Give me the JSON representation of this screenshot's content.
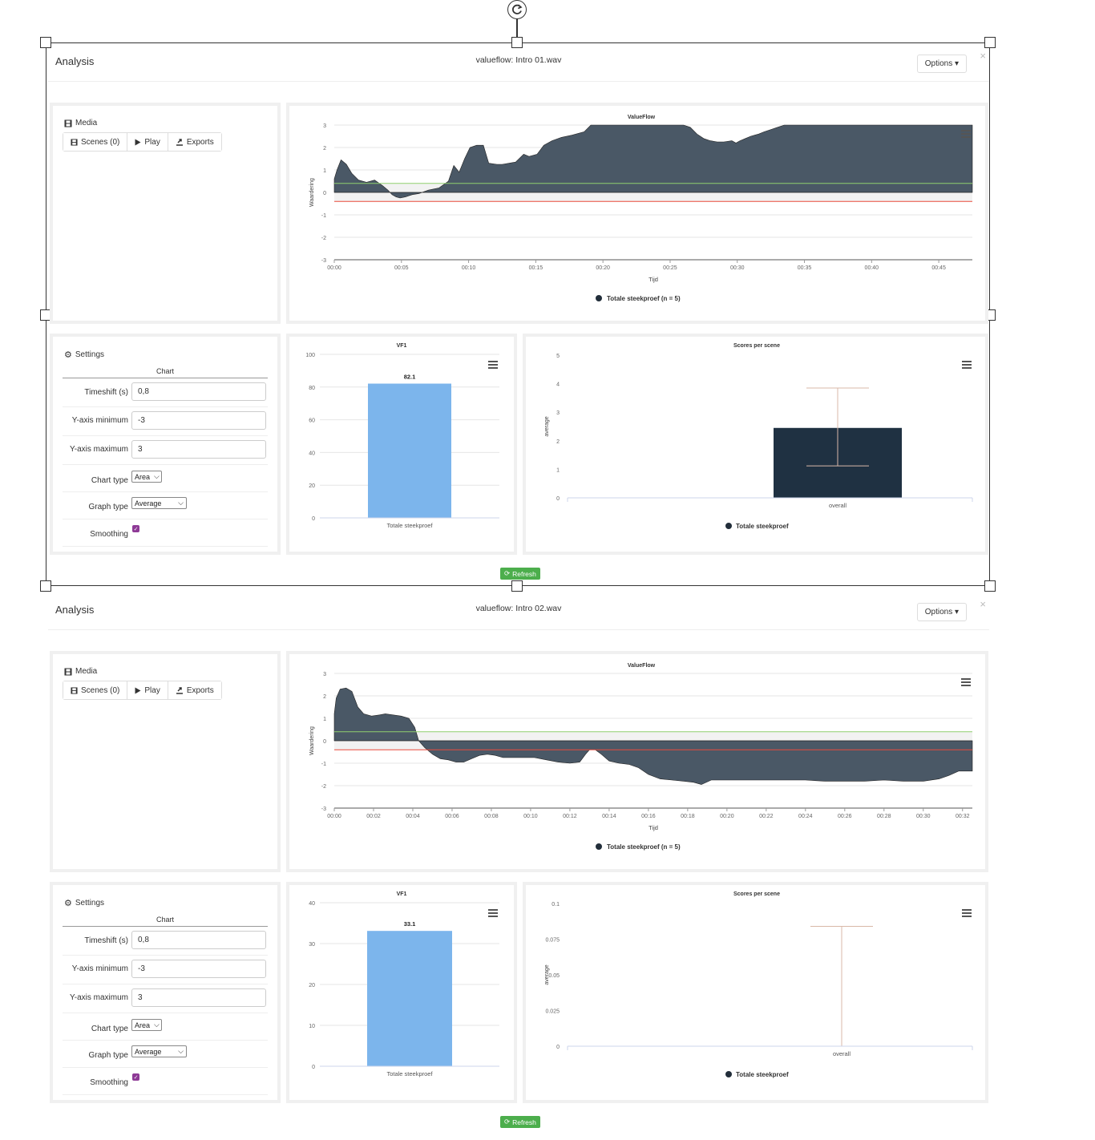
{
  "analyses": [
    {
      "title": "Analysis",
      "file": "valueflow: Intro 01.wav",
      "options_label": "Options ▾",
      "close": "×",
      "media": {
        "label": "Media",
        "scenes": "Scenes (0)",
        "play": "Play",
        "exports": "Exports"
      },
      "settings": {
        "label": "Settings",
        "section": "Chart",
        "timeshift_label": "Timeshift (s)",
        "timeshift": "0,8",
        "ymin_label": "Y-axis minimum",
        "ymin": "-3",
        "ymax_label": "Y-axis maximum",
        "ymax": "3",
        "charttype_label": "Chart type",
        "charttype": "Area",
        "graphtype_label": "Graph type",
        "graphtype": "Average",
        "smoothing_label": "Smoothing",
        "smoothing": true
      },
      "refresh": "Refresh",
      "colors": {
        "area": "#4a5866",
        "bar": "#7cb5ec",
        "scene_bar": "#1f3142",
        "err": "#d9b8a8",
        "green": "#8fcf6f",
        "red": "#e84a3c"
      }
    },
    {
      "title": "Analysis",
      "file": "valueflow: Intro 02.wav",
      "options_label": "Options ▾",
      "close": "×",
      "media": {
        "label": "Media",
        "scenes": "Scenes (0)",
        "play": "Play",
        "exports": "Exports"
      },
      "settings": {
        "label": "Settings",
        "section": "Chart",
        "timeshift_label": "Timeshift (s)",
        "timeshift": "0,8",
        "ymin_label": "Y-axis minimum",
        "ymin": "-3",
        "ymax_label": "Y-axis maximum",
        "ymax": "3",
        "charttype_label": "Chart type",
        "charttype": "Area",
        "graphtype_label": "Graph type",
        "graphtype": "Average",
        "smoothing_label": "Smoothing",
        "smoothing": true
      },
      "refresh": "Refresh"
    }
  ],
  "chart_data": [
    {
      "id": "vf1-area",
      "type": "area",
      "title": "ValueFlow",
      "xlabel": "Tijd",
      "ylabel": "Waardering",
      "ylim": [
        -3,
        3
      ],
      "yticks": [
        3,
        2,
        1,
        0,
        -1,
        -2,
        -3
      ],
      "xlim": [
        0,
        47.5
      ],
      "xticks": [
        "00:00",
        "00:05",
        "00:10",
        "00:15",
        "00:20",
        "00:25",
        "00:30",
        "00:35",
        "00:40",
        "00:45"
      ],
      "xtick_values": [
        0,
        5,
        10,
        15,
        20,
        25,
        30,
        35,
        40,
        45
      ],
      "legend": "Totale steekproef (n = 5)",
      "ref_lines": [
        0.4,
        -0.4
      ],
      "x": [
        0,
        0.2,
        0.5,
        0.9,
        1.3,
        1.8,
        2.4,
        3.0,
        3.6,
        4.0,
        4.3,
        4.6,
        4.9,
        5.3,
        5.8,
        6.3,
        7.0,
        7.8,
        8.5,
        8.9,
        9.3,
        9.7,
        10.1,
        10.6,
        11.1,
        11.5,
        12.1,
        12.5,
        13.5,
        14.1,
        14.5,
        15.1,
        15.6,
        16.2,
        16.9,
        17.7,
        18.6,
        19.1,
        19.6,
        20.4,
        21.4,
        22.3,
        23.3,
        24.5,
        26.0,
        26.5,
        27.0,
        27.5,
        28.0,
        28.5,
        29.0,
        29.6,
        29.9,
        30.2,
        30.6,
        31.0,
        31.3,
        31.6,
        32.0,
        32.5,
        33.0,
        33.5,
        34.0,
        47.5
      ],
      "y": [
        0.6,
        1.0,
        1.45,
        1.25,
        0.85,
        0.55,
        0.45,
        0.55,
        0.3,
        0.1,
        -0.1,
        -0.2,
        -0.25,
        -0.2,
        -0.1,
        -0.05,
        0.1,
        0.2,
        0.5,
        1.2,
        0.9,
        1.5,
        2.0,
        2.1,
        2.1,
        1.3,
        1.25,
        1.25,
        1.35,
        1.7,
        1.6,
        1.7,
        2.1,
        2.3,
        2.45,
        2.55,
        2.7,
        3.0,
        3.1,
        3.1,
        3.05,
        3.05,
        3.05,
        3.1,
        3.1,
        2.9,
        2.6,
        2.4,
        2.3,
        2.25,
        2.25,
        2.3,
        2.2,
        2.3,
        2.4,
        2.5,
        2.55,
        2.6,
        2.7,
        2.8,
        2.9,
        3.0,
        3.2,
        3.2
      ]
    },
    {
      "id": "vf1-bar",
      "type": "bar",
      "title": "VF1",
      "categories": [
        "Totale steekproef"
      ],
      "values": [
        82.1
      ],
      "data_labels": [
        "82.1"
      ],
      "ylim": [
        0,
        100
      ],
      "yticks": [
        0,
        20,
        40,
        60,
        80,
        100
      ]
    },
    {
      "id": "scores1",
      "type": "bar",
      "title": "Scores per scene",
      "ylabel": "average",
      "categories": [
        "overall"
      ],
      "values": [
        2.45
      ],
      "error": [
        1.12,
        3.85
      ],
      "ylim": [
        0,
        5
      ],
      "yticks": [
        0,
        1,
        2,
        3,
        4,
        5
      ],
      "legend": "Totale steekproef"
    },
    {
      "id": "vf2-area",
      "type": "area",
      "title": "ValueFlow",
      "xlabel": "Tijd",
      "ylabel": "Waardering",
      "ylim": [
        -3,
        3
      ],
      "yticks": [
        3,
        2,
        1,
        0,
        -1,
        -2,
        -3
      ],
      "xlim": [
        0,
        32.5
      ],
      "xticks": [
        "00:00",
        "00:02",
        "00:04",
        "00:06",
        "00:08",
        "00:10",
        "00:12",
        "00:14",
        "00:16",
        "00:18",
        "00:20",
        "00:22",
        "00:24",
        "00:26",
        "00:28",
        "00:30",
        "00:32"
      ],
      "xtick_values": [
        0,
        2,
        4,
        6,
        8,
        10,
        12,
        14,
        16,
        18,
        20,
        22,
        24,
        26,
        28,
        30,
        32
      ],
      "legend": "Totale steekproef (n = 5)",
      "ref_lines": [
        0.4,
        -0.4
      ],
      "x": [
        0,
        0.1,
        0.3,
        0.6,
        0.9,
        1.2,
        1.5,
        1.9,
        2.3,
        2.6,
        3.0,
        3.4,
        3.8,
        4.1,
        4.3,
        4.6,
        5.0,
        5.4,
        5.8,
        6.2,
        6.6,
        7.0,
        7.4,
        7.8,
        8.2,
        8.6,
        9.0,
        9.6,
        10.2,
        10.8,
        11.4,
        12.0,
        12.5,
        12.8,
        13.0,
        13.3,
        13.6,
        14.0,
        14.5,
        15.0,
        15.5,
        16.0,
        16.6,
        17.2,
        17.8,
        18.3,
        18.7,
        19.2,
        20.0,
        21.0,
        22.0,
        23.0,
        24.0,
        25.0,
        26.0,
        27.0,
        28.0,
        29.0,
        30.0,
        30.8,
        31.3,
        31.8,
        32.5
      ],
      "y": [
        1.2,
        1.9,
        2.3,
        2.35,
        2.2,
        1.5,
        1.2,
        1.1,
        1.15,
        1.2,
        1.15,
        1.1,
        1.0,
        0.6,
        0.0,
        -0.3,
        -0.6,
        -0.8,
        -0.85,
        -0.95,
        -0.95,
        -0.8,
        -0.65,
        -0.6,
        -0.65,
        -0.75,
        -0.75,
        -0.75,
        -0.75,
        -0.85,
        -0.95,
        -1.0,
        -0.95,
        -0.6,
        -0.4,
        -0.4,
        -0.6,
        -0.9,
        -1.0,
        -1.05,
        -1.2,
        -1.5,
        -1.7,
        -1.75,
        -1.8,
        -1.85,
        -1.95,
        -1.75,
        -1.75,
        -1.75,
        -1.75,
        -1.75,
        -1.75,
        -1.8,
        -1.8,
        -1.8,
        -1.75,
        -1.8,
        -1.8,
        -1.7,
        -1.55,
        -1.35,
        -1.35
      ]
    },
    {
      "id": "vf2-bar",
      "type": "bar",
      "title": "VF1",
      "categories": [
        "Totale steekproef"
      ],
      "values": [
        33.1
      ],
      "data_labels": [
        "33.1"
      ],
      "ylim": [
        0,
        40
      ],
      "yticks": [
        0,
        10,
        20,
        30,
        40
      ]
    },
    {
      "id": "scores2",
      "type": "bar",
      "title": "Scores per scene",
      "ylabel": "average",
      "categories": [
        "overall"
      ],
      "values": [
        0
      ],
      "error": [
        0,
        0.084
      ],
      "ylim": [
        0,
        0.1
      ],
      "yticks": [
        "0",
        "0.025",
        "0.05",
        "0.075",
        "0.1"
      ],
      "ytick_values": [
        0,
        0.025,
        0.05,
        0.075,
        0.1
      ],
      "legend": "Totale steekproef"
    }
  ]
}
